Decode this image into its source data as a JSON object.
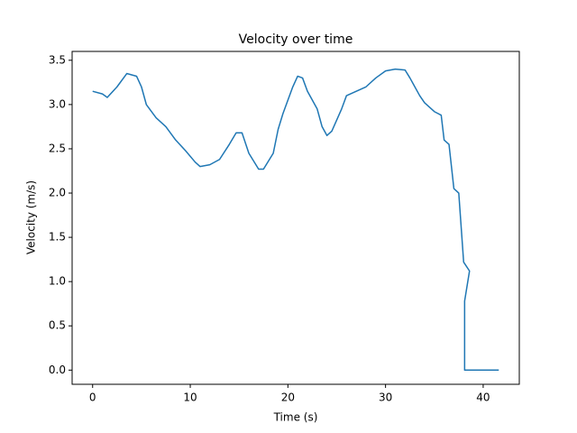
{
  "chart_data": {
    "type": "line",
    "title": "Velocity over time",
    "x_label": "Time (s)",
    "y_label": "Velocity (m/s)",
    "x": [
      0,
      1,
      1.5,
      2.5,
      3.5,
      4.5,
      5,
      5.5,
      6.5,
      7.5,
      8.5,
      9.5,
      10.5,
      11,
      12,
      13,
      14,
      14.7,
      15.3,
      16,
      17,
      17.5,
      18.5,
      19,
      19.5,
      20.5,
      21,
      21.5,
      22,
      23,
      23.5,
      24,
      24.5,
      25.5,
      26,
      27,
      28,
      29,
      30,
      31,
      32,
      32.5,
      33,
      33.5,
      34,
      35,
      35.7,
      36,
      36.5,
      37,
      37.5,
      38,
      38.6,
      38.1,
      38.1,
      41.6
    ],
    "series": [
      {
        "name": "Velocity",
        "color": "#1f77b4",
        "values": [
          3.15,
          3.12,
          3.08,
          3.2,
          3.35,
          3.32,
          3.2,
          3.0,
          2.85,
          2.75,
          2.6,
          2.48,
          2.35,
          2.3,
          2.32,
          2.38,
          2.55,
          2.68,
          2.68,
          2.45,
          2.27,
          2.27,
          2.45,
          2.72,
          2.9,
          3.2,
          3.32,
          3.3,
          3.15,
          2.95,
          2.75,
          2.65,
          2.7,
          2.95,
          3.1,
          3.15,
          3.2,
          3.3,
          3.38,
          3.4,
          3.39,
          3.3,
          3.2,
          3.1,
          3.02,
          2.92,
          2.88,
          2.6,
          2.55,
          2.05,
          2.0,
          1.22,
          1.12,
          0.78,
          0.0,
          0.0
        ]
      }
    ],
    "xlim": [
      -2.1,
      43.7
    ],
    "ylim": [
      -0.16,
      3.6
    ],
    "xticks": [
      0,
      10,
      20,
      30,
      40
    ],
    "yticks": [
      {
        "value": 0,
        "label": "0.0"
      },
      0.5,
      {
        "value": 1,
        "label": "1.0"
      },
      1.5,
      {
        "value": 2,
        "label": "2.0"
      },
      2.5,
      {
        "value": 3,
        "label": "3.0"
      },
      3.5
    ]
  }
}
